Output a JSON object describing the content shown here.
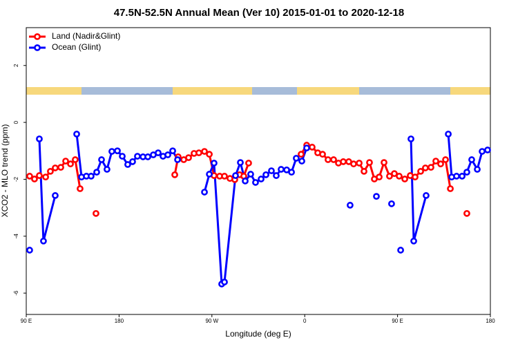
{
  "chart_data": {
    "type": "line",
    "title": "47.5N-52.5N Annual Mean (Ver 10)   2015-01-01 to 2020-12-18",
    "x_label": "Longitude (deg E)",
    "y_label": "XCO2 - MLO trend (ppm)",
    "xlim": [
      90,
      540
    ],
    "xticks": [
      {
        "value": 90,
        "label": "90 E"
      },
      {
        "value": 180,
        "label": "180"
      },
      {
        "value": 270,
        "label": "90 W"
      },
      {
        "value": 360,
        "label": "0"
      },
      {
        "value": 450,
        "label": "90 E"
      },
      {
        "value": 540,
        "label": "180"
      }
    ],
    "ylim": [
      -6.75,
      3.33
    ],
    "yticks": [
      2,
      0,
      -2,
      -4,
      -6
    ],
    "legend": "top-left",
    "series": [
      {
        "name": "Land (Nadir&Glint)",
        "color": "#ff0000",
        "x": [
          93.3,
          98,
          102.7,
          108.8,
          113.4,
          118.1,
          123.5,
          128.2,
          132.9,
          137.5,
          142.2,
          null,
          157.6,
          null,
          234,
          237.3,
          242.7,
          247.4,
          252.7,
          257.4,
          262.8,
          267.5,
          272.1,
          277.5,
          282.2,
          287.5,
          292.2,
          296.9,
          300.9,
          305.6,
          null,
          356.5,
          361.9,
          367.2,
          372.6,
          377.3,
          382.6,
          388,
          392.7,
          397.4,
          402.7,
          407.4,
          412.8,
          417.5,
          422.8,
          427.5,
          432.2,
          436.9,
          442.2,
          446.9,
          451.6,
          457,
          462.3,
          467,
          472.4,
          477,
          482.4,
          487.1,
          491.8,
          496.5,
          501.2,
          null,
          517.2
        ],
        "values": [
          -1.89,
          -1.99,
          -1.87,
          -1.92,
          -1.72,
          -1.6,
          -1.58,
          -1.36,
          -1.46,
          -1.31,
          -2.33,
          null,
          -3.2,
          null,
          -1.84,
          -1.21,
          -1.31,
          -1.24,
          -1.09,
          -1.07,
          -1.02,
          -1.12,
          -1.87,
          -1.89,
          -1.89,
          -1.97,
          -2.01,
          -1.84,
          -1.89,
          -1.43,
          null,
          -1.12,
          -0.8,
          -0.87,
          -1.07,
          -1.12,
          -1.31,
          -1.31,
          -1.43,
          -1.38,
          -1.38,
          -1.46,
          -1.43,
          -1.72,
          -1.41,
          -1.99,
          -1.92,
          -1.41,
          -1.89,
          -1.8,
          -1.89,
          -1.99,
          -1.87,
          -1.92,
          -1.72,
          -1.6,
          -1.58,
          -1.36,
          -1.46,
          -1.31,
          -2.33,
          null,
          -3.2
        ]
      },
      {
        "name": "Ocean (Glint)",
        "color": "#0000ff",
        "x": [
          93.3,
          null,
          102.7,
          106.7,
          118.1,
          null,
          138.9,
          143.6,
          148.3,
          152.9,
          158.3,
          163,
          168.3,
          173,
          178.4,
          183.1,
          188.4,
          193.1,
          197.8,
          203.2,
          207.9,
          213.2,
          217.9,
          222.6,
          227.3,
          232,
          236.7,
          null,
          262.8,
          267.5,
          272.1,
          279.5,
          282.2,
          292.9,
          297.6,
          302.3,
          307.6,
          312.3,
          317.7,
          322.4,
          327.7,
          332.4,
          337.1,
          342.5,
          347.2,
          351.8,
          357.2,
          361.9,
          null,
          404,
          null,
          429.5,
          null,
          444.2,
          null,
          453,
          null,
          463,
          465.7,
          477.7,
          null,
          499.2,
          502.5,
          507.2,
          512.6,
          517.2,
          521.9,
          527.3,
          532,
          537.3
        ],
        "values": [
          -4.49,
          null,
          -0.58,
          -4.17,
          -2.57,
          null,
          -0.41,
          -1.92,
          -1.89,
          -1.89,
          -1.75,
          -1.31,
          -1.65,
          -1.02,
          -1.0,
          -1.19,
          -1.48,
          -1.38,
          -1.19,
          -1.21,
          -1.21,
          -1.14,
          -1.07,
          -1.19,
          -1.14,
          -1.0,
          -1.31,
          null,
          -2.45,
          -1.82,
          -1.43,
          -5.68,
          -5.61,
          -1.87,
          -1.41,
          -2.06,
          -1.82,
          -2.11,
          -1.99,
          -1.84,
          -1.7,
          -1.87,
          -1.65,
          -1.67,
          -1.75,
          -1.26,
          -1.36,
          -0.9,
          null,
          -2.91,
          null,
          -2.6,
          null,
          -2.86,
          null,
          -4.49,
          null,
          -0.58,
          -4.17,
          -2.57,
          null,
          -0.41,
          -1.92,
          -1.89,
          -1.89,
          -1.75,
          -1.31,
          -1.65,
          -1.02,
          -0.97
        ]
      }
    ]
  }
}
